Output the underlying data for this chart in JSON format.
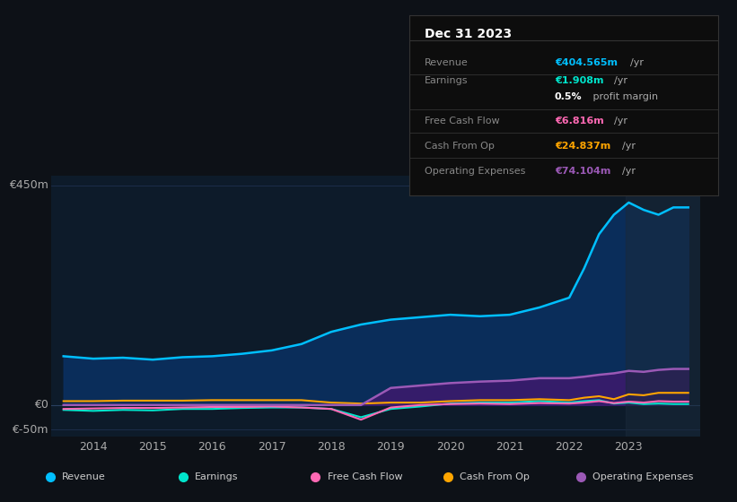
{
  "background_color": "#0d1117",
  "plot_bg_color": "#0d1b2a",
  "grid_color": "#1e3050",
  "title_box": {
    "date": "Dec 31 2023",
    "rows": [
      {
        "label": "Revenue",
        "value": "€404.565m",
        "unit": "/yr",
        "value_color": "#00bfff"
      },
      {
        "label": "Earnings",
        "value": "€1.908m",
        "unit": "/yr",
        "value_color": "#00e5cc"
      },
      {
        "label": "",
        "value": "0.5%",
        "unit": " profit margin",
        "value_color": "#ffffff"
      },
      {
        "label": "Free Cash Flow",
        "value": "€6.816m",
        "unit": "/yr",
        "value_color": "#ff69b4"
      },
      {
        "label": "Cash From Op",
        "value": "€24.837m",
        "unit": "/yr",
        "value_color": "#ffa500"
      },
      {
        "label": "Operating Expenses",
        "value": "€74.104m",
        "unit": "/yr",
        "value_color": "#9b59b6"
      }
    ]
  },
  "x_years": [
    2013.5,
    2014,
    2014.5,
    2015,
    2015.5,
    2016,
    2016.5,
    2017,
    2017.5,
    2018,
    2018.5,
    2019,
    2019.5,
    2020,
    2020.5,
    2021,
    2021.5,
    2022,
    2022.25,
    2022.5,
    2022.75,
    2023,
    2023.25,
    2023.5,
    2023.75,
    2024
  ],
  "revenue": [
    100,
    95,
    97,
    93,
    98,
    100,
    105,
    112,
    125,
    150,
    165,
    175,
    180,
    185,
    182,
    185,
    200,
    220,
    280,
    350,
    390,
    415,
    400,
    390,
    405,
    405
  ],
  "earnings": [
    -10,
    -12,
    -10,
    -11,
    -8,
    -8,
    -6,
    -5,
    -5,
    -8,
    -25,
    -8,
    -3,
    3,
    5,
    5,
    8,
    5,
    8,
    10,
    3,
    5,
    2,
    3,
    2,
    2
  ],
  "free_cash": [
    -8,
    -7,
    -6,
    -6,
    -5,
    -4,
    -4,
    -3,
    -5,
    -8,
    -30,
    -5,
    0,
    2,
    3,
    2,
    4,
    3,
    5,
    8,
    4,
    7,
    5,
    8,
    7,
    7
  ],
  "cash_from_op": [
    8,
    8,
    9,
    9,
    9,
    10,
    10,
    10,
    10,
    5,
    3,
    5,
    5,
    8,
    10,
    10,
    12,
    10,
    15,
    18,
    12,
    22,
    20,
    25,
    25,
    25
  ],
  "op_expenses": [
    0,
    0,
    0,
    0,
    0,
    0,
    0,
    0,
    0,
    0,
    0,
    35,
    40,
    45,
    48,
    50,
    55,
    55,
    58,
    62,
    65,
    70,
    68,
    72,
    74,
    74
  ],
  "ylim": [
    -65,
    470
  ],
  "yticks": [
    -50,
    0,
    450
  ],
  "ytick_labels": [
    "€-50m",
    "€0",
    "€450m"
  ],
  "xtick_years": [
    2014,
    2015,
    2016,
    2017,
    2018,
    2019,
    2020,
    2021,
    2022,
    2023
  ],
  "legend_items": [
    {
      "label": "Revenue",
      "color": "#00bfff"
    },
    {
      "label": "Earnings",
      "color": "#00e5cc"
    },
    {
      "label": "Free Cash Flow",
      "color": "#ff69b4"
    },
    {
      "label": "Cash From Op",
      "color": "#ffa500"
    },
    {
      "label": "Operating Expenses",
      "color": "#9b59b6"
    }
  ],
  "revenue_color": "#00bfff",
  "earnings_color": "#00e5cc",
  "free_cash_color": "#ff69b4",
  "cash_from_op_color": "#ffa500",
  "op_expenses_color": "#9b59b6",
  "op_expenses_fill_color": "#3d1a6e",
  "revenue_fill_color": "#0a3060"
}
